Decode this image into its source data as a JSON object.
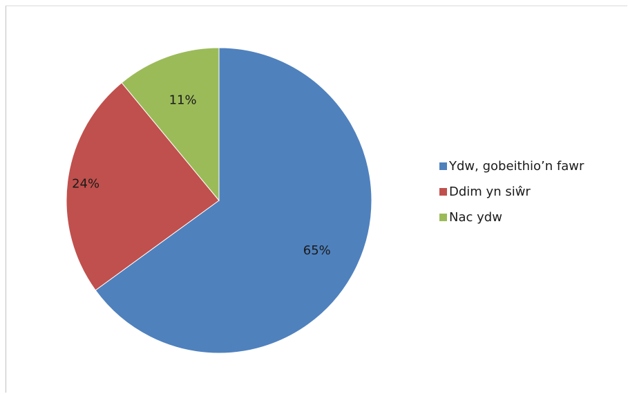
{
  "chart_data": {
    "type": "pie",
    "title": "",
    "legend_position": "right",
    "slices": [
      {
        "label": "Ydw, gobeithio’n fawr",
        "value": 65,
        "display": "65%",
        "color": "#4f81bd"
      },
      {
        "label": "Ddim yn siŵr",
        "value": 24,
        "display": "24%",
        "color": "#c0504d"
      },
      {
        "label": "Nac ydw",
        "value": 11,
        "display": "11%",
        "color": "#9bbb59"
      }
    ]
  }
}
